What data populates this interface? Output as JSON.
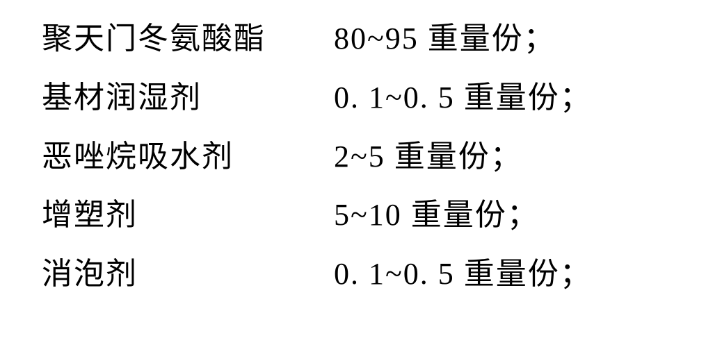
{
  "rows": [
    {
      "label": "聚天门冬氨酸酯",
      "value": "80~95 重量份；"
    },
    {
      "label": "基材润湿剂",
      "value": "0. 1~0. 5 重量份；"
    },
    {
      "label": "恶唑烷吸水剂",
      "value": "2~5 重量份；"
    },
    {
      "label": "增塑剂",
      "value": "5~10 重量份；"
    },
    {
      "label": "消泡剂",
      "value": "0. 1~0. 5 重量份；"
    }
  ]
}
